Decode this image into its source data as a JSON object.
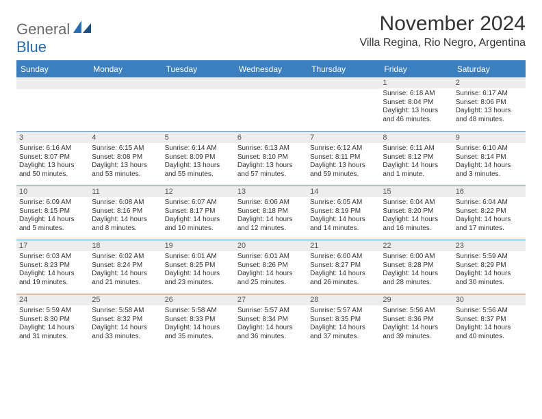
{
  "logo": {
    "word1": "General",
    "word2": "Blue"
  },
  "header": {
    "month": "November 2024",
    "location": "Villa Regina, Rio Negro, Argentina"
  },
  "weekdays": [
    "Sunday",
    "Monday",
    "Tuesday",
    "Wednesday",
    "Thursday",
    "Friday",
    "Saturday"
  ],
  "colors": {
    "header_bg": "#3b7fbf",
    "header_text": "#ffffff",
    "daynum_bg": "#ededed",
    "border": "#3b7fbf",
    "logo_gray": "#6a6a6a",
    "logo_blue": "#2a6cb0"
  },
  "typography": {
    "month_title_pt": 30,
    "location_pt": 16,
    "weekday_pt": 12,
    "daynum_pt": 11,
    "body_pt": 10
  },
  "calendar": {
    "type": "table",
    "rows": 5,
    "cols": 7,
    "first_weekday_index": 5,
    "days": [
      {
        "n": 1,
        "sunrise": "6:18 AM",
        "sunset": "8:04 PM",
        "daylight": "13 hours and 46 minutes."
      },
      {
        "n": 2,
        "sunrise": "6:17 AM",
        "sunset": "8:06 PM",
        "daylight": "13 hours and 48 minutes."
      },
      {
        "n": 3,
        "sunrise": "6:16 AM",
        "sunset": "8:07 PM",
        "daylight": "13 hours and 50 minutes."
      },
      {
        "n": 4,
        "sunrise": "6:15 AM",
        "sunset": "8:08 PM",
        "daylight": "13 hours and 53 minutes."
      },
      {
        "n": 5,
        "sunrise": "6:14 AM",
        "sunset": "8:09 PM",
        "daylight": "13 hours and 55 minutes."
      },
      {
        "n": 6,
        "sunrise": "6:13 AM",
        "sunset": "8:10 PM",
        "daylight": "13 hours and 57 minutes."
      },
      {
        "n": 7,
        "sunrise": "6:12 AM",
        "sunset": "8:11 PM",
        "daylight": "13 hours and 59 minutes."
      },
      {
        "n": 8,
        "sunrise": "6:11 AM",
        "sunset": "8:12 PM",
        "daylight": "14 hours and 1 minute."
      },
      {
        "n": 9,
        "sunrise": "6:10 AM",
        "sunset": "8:14 PM",
        "daylight": "14 hours and 3 minutes."
      },
      {
        "n": 10,
        "sunrise": "6:09 AM",
        "sunset": "8:15 PM",
        "daylight": "14 hours and 5 minutes."
      },
      {
        "n": 11,
        "sunrise": "6:08 AM",
        "sunset": "8:16 PM",
        "daylight": "14 hours and 8 minutes."
      },
      {
        "n": 12,
        "sunrise": "6:07 AM",
        "sunset": "8:17 PM",
        "daylight": "14 hours and 10 minutes."
      },
      {
        "n": 13,
        "sunrise": "6:06 AM",
        "sunset": "8:18 PM",
        "daylight": "14 hours and 12 minutes."
      },
      {
        "n": 14,
        "sunrise": "6:05 AM",
        "sunset": "8:19 PM",
        "daylight": "14 hours and 14 minutes."
      },
      {
        "n": 15,
        "sunrise": "6:04 AM",
        "sunset": "8:20 PM",
        "daylight": "14 hours and 16 minutes."
      },
      {
        "n": 16,
        "sunrise": "6:04 AM",
        "sunset": "8:22 PM",
        "daylight": "14 hours and 17 minutes."
      },
      {
        "n": 17,
        "sunrise": "6:03 AM",
        "sunset": "8:23 PM",
        "daylight": "14 hours and 19 minutes."
      },
      {
        "n": 18,
        "sunrise": "6:02 AM",
        "sunset": "8:24 PM",
        "daylight": "14 hours and 21 minutes."
      },
      {
        "n": 19,
        "sunrise": "6:01 AM",
        "sunset": "8:25 PM",
        "daylight": "14 hours and 23 minutes."
      },
      {
        "n": 20,
        "sunrise": "6:01 AM",
        "sunset": "8:26 PM",
        "daylight": "14 hours and 25 minutes."
      },
      {
        "n": 21,
        "sunrise": "6:00 AM",
        "sunset": "8:27 PM",
        "daylight": "14 hours and 26 minutes."
      },
      {
        "n": 22,
        "sunrise": "6:00 AM",
        "sunset": "8:28 PM",
        "daylight": "14 hours and 28 minutes."
      },
      {
        "n": 23,
        "sunrise": "5:59 AM",
        "sunset": "8:29 PM",
        "daylight": "14 hours and 30 minutes."
      },
      {
        "n": 24,
        "sunrise": "5:59 AM",
        "sunset": "8:30 PM",
        "daylight": "14 hours and 31 minutes."
      },
      {
        "n": 25,
        "sunrise": "5:58 AM",
        "sunset": "8:32 PM",
        "daylight": "14 hours and 33 minutes."
      },
      {
        "n": 26,
        "sunrise": "5:58 AM",
        "sunset": "8:33 PM",
        "daylight": "14 hours and 35 minutes."
      },
      {
        "n": 27,
        "sunrise": "5:57 AM",
        "sunset": "8:34 PM",
        "daylight": "14 hours and 36 minutes."
      },
      {
        "n": 28,
        "sunrise": "5:57 AM",
        "sunset": "8:35 PM",
        "daylight": "14 hours and 37 minutes."
      },
      {
        "n": 29,
        "sunrise": "5:56 AM",
        "sunset": "8:36 PM",
        "daylight": "14 hours and 39 minutes."
      },
      {
        "n": 30,
        "sunrise": "5:56 AM",
        "sunset": "8:37 PM",
        "daylight": "14 hours and 40 minutes."
      }
    ],
    "labels": {
      "sunrise": "Sunrise:",
      "sunset": "Sunset:",
      "daylight": "Daylight:"
    }
  }
}
